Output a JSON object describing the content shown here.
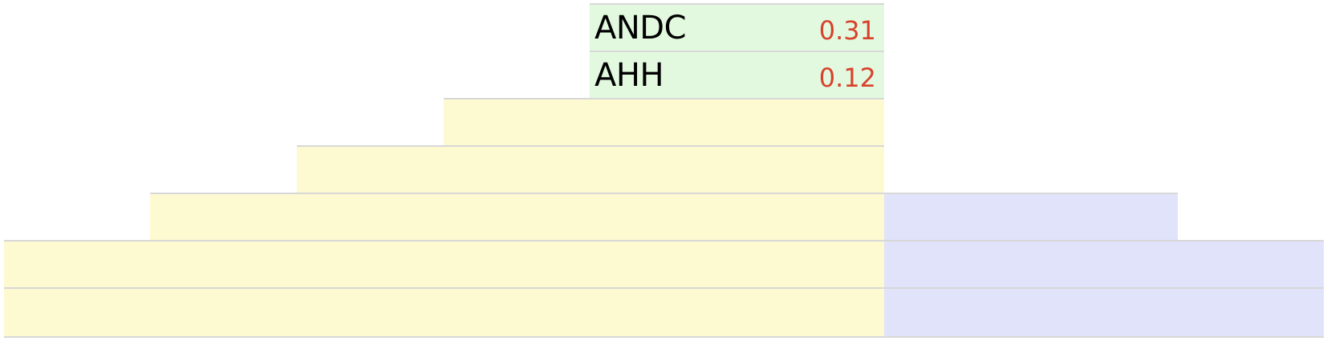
{
  "colors": {
    "green": "#e2f9df",
    "yellow": "#fdf9d0",
    "blue": "#e0e3f9",
    "value_red": "#d8412c",
    "line": "#d8d8d8"
  },
  "rows": [
    {
      "label": "ANDC",
      "value": "0.31"
    },
    {
      "label": "AHH",
      "value": "0.12"
    }
  ]
}
